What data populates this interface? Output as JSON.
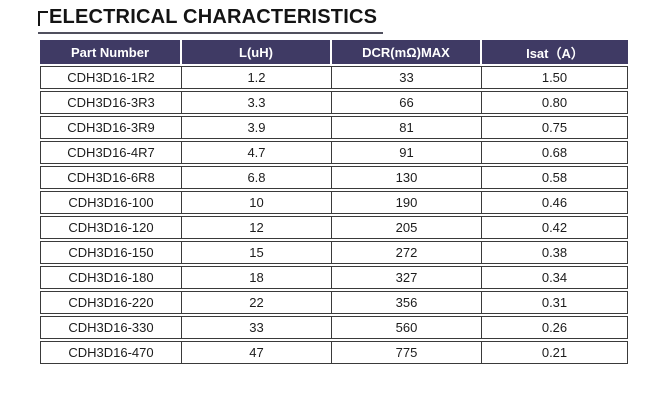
{
  "page": {
    "title": "ELECTRICAL CHARACTERISTICS"
  },
  "table": {
    "columns": [
      "Part Number",
      "L(uH)",
      "DCR(mΩ)MAX",
      "Isat（A）"
    ],
    "rows": [
      {
        "part_number": "CDH3D16-1R2",
        "l_uh": "1.2",
        "dcr_mohm_max": "33",
        "isat_a": "1.50"
      },
      {
        "part_number": "CDH3D16-3R3",
        "l_uh": "3.3",
        "dcr_mohm_max": "66",
        "isat_a": "0.80"
      },
      {
        "part_number": "CDH3D16-3R9",
        "l_uh": "3.9",
        "dcr_mohm_max": "81",
        "isat_a": "0.75"
      },
      {
        "part_number": "CDH3D16-4R7",
        "l_uh": "4.7",
        "dcr_mohm_max": "91",
        "isat_a": "0.68"
      },
      {
        "part_number": "CDH3D16-6R8",
        "l_uh": "6.8",
        "dcr_mohm_max": "130",
        "isat_a": "0.58"
      },
      {
        "part_number": "CDH3D16-100",
        "l_uh": "10",
        "dcr_mohm_max": "190",
        "isat_a": "0.46"
      },
      {
        "part_number": "CDH3D16-120",
        "l_uh": "12",
        "dcr_mohm_max": "205",
        "isat_a": "0.42"
      },
      {
        "part_number": "CDH3D16-150",
        "l_uh": "15",
        "dcr_mohm_max": "272",
        "isat_a": "0.38"
      },
      {
        "part_number": "CDH3D16-180",
        "l_uh": "18",
        "dcr_mohm_max": "327",
        "isat_a": "0.34"
      },
      {
        "part_number": "CDH3D16-220",
        "l_uh": "22",
        "dcr_mohm_max": "356",
        "isat_a": "0.31"
      },
      {
        "part_number": "CDH3D16-330",
        "l_uh": "33",
        "dcr_mohm_max": "560",
        "isat_a": "0.26"
      },
      {
        "part_number": "CDH3D16-470",
        "l_uh": "47",
        "dcr_mohm_max": "775",
        "isat_a": "0.21"
      }
    ],
    "row_cell_keys": [
      "part_number",
      "l_uh",
      "dcr_mohm_max",
      "isat_a"
    ]
  },
  "colors": {
    "header_bg": "#3F3A64",
    "header_text": "#FFFFFF",
    "border": "#3A3A3A",
    "title_underline": "#50505E"
  }
}
